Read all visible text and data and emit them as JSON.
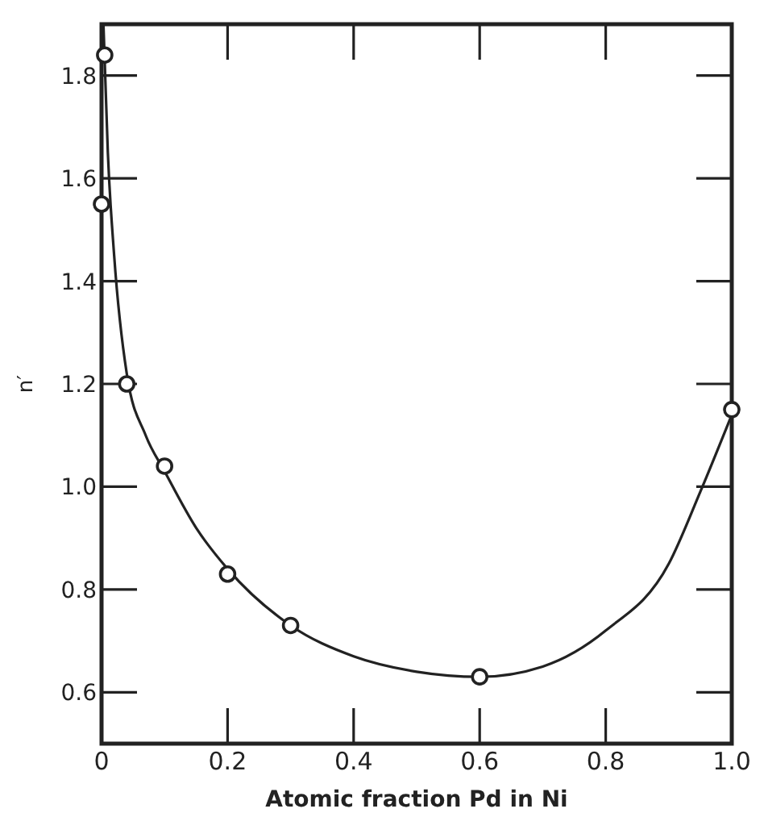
{
  "chart_data": {
    "type": "scatter",
    "xlabel": "Atomic fraction Pd in Ni",
    "ylabel": "n′",
    "xlim": [
      0,
      1
    ],
    "ylim": [
      0.5,
      1.9
    ],
    "xticks": [
      0,
      0.2,
      0.4,
      0.6,
      0.8,
      {
        "value": 1,
        "label": "1.0"
      }
    ],
    "yticks": [
      0.6,
      0.8,
      {
        "value": 1,
        "label": "1.0"
      },
      1.2,
      1.4,
      1.6,
      1.8
    ],
    "grid": false,
    "marker": "circle",
    "series": [
      {
        "color": "#222222",
        "x": [
          0,
          0.005,
          0.04,
          0.1,
          0.2,
          0.3,
          0.6,
          1.0
        ],
        "values": [
          1.55,
          1.84,
          1.2,
          1.04,
          0.83,
          0.73,
          0.63,
          1.15
        ]
      },
      {
        "type": "line",
        "color": "#222222",
        "marker": "none",
        "line_style": "solid",
        "x": [
          0.003,
          0.01,
          0.02,
          0.04,
          0.07,
          0.1,
          0.15,
          0.2,
          0.3,
          0.4,
          0.5,
          0.6,
          0.7,
          0.8,
          0.9,
          0.95,
          1.0
        ],
        "values": [
          1.9,
          1.65,
          1.45,
          1.22,
          1.1,
          1.03,
          0.92,
          0.84,
          0.73,
          0.67,
          0.64,
          0.63,
          0.65,
          0.72,
          0.85,
          0.99,
          1.14
        ]
      }
    ]
  }
}
